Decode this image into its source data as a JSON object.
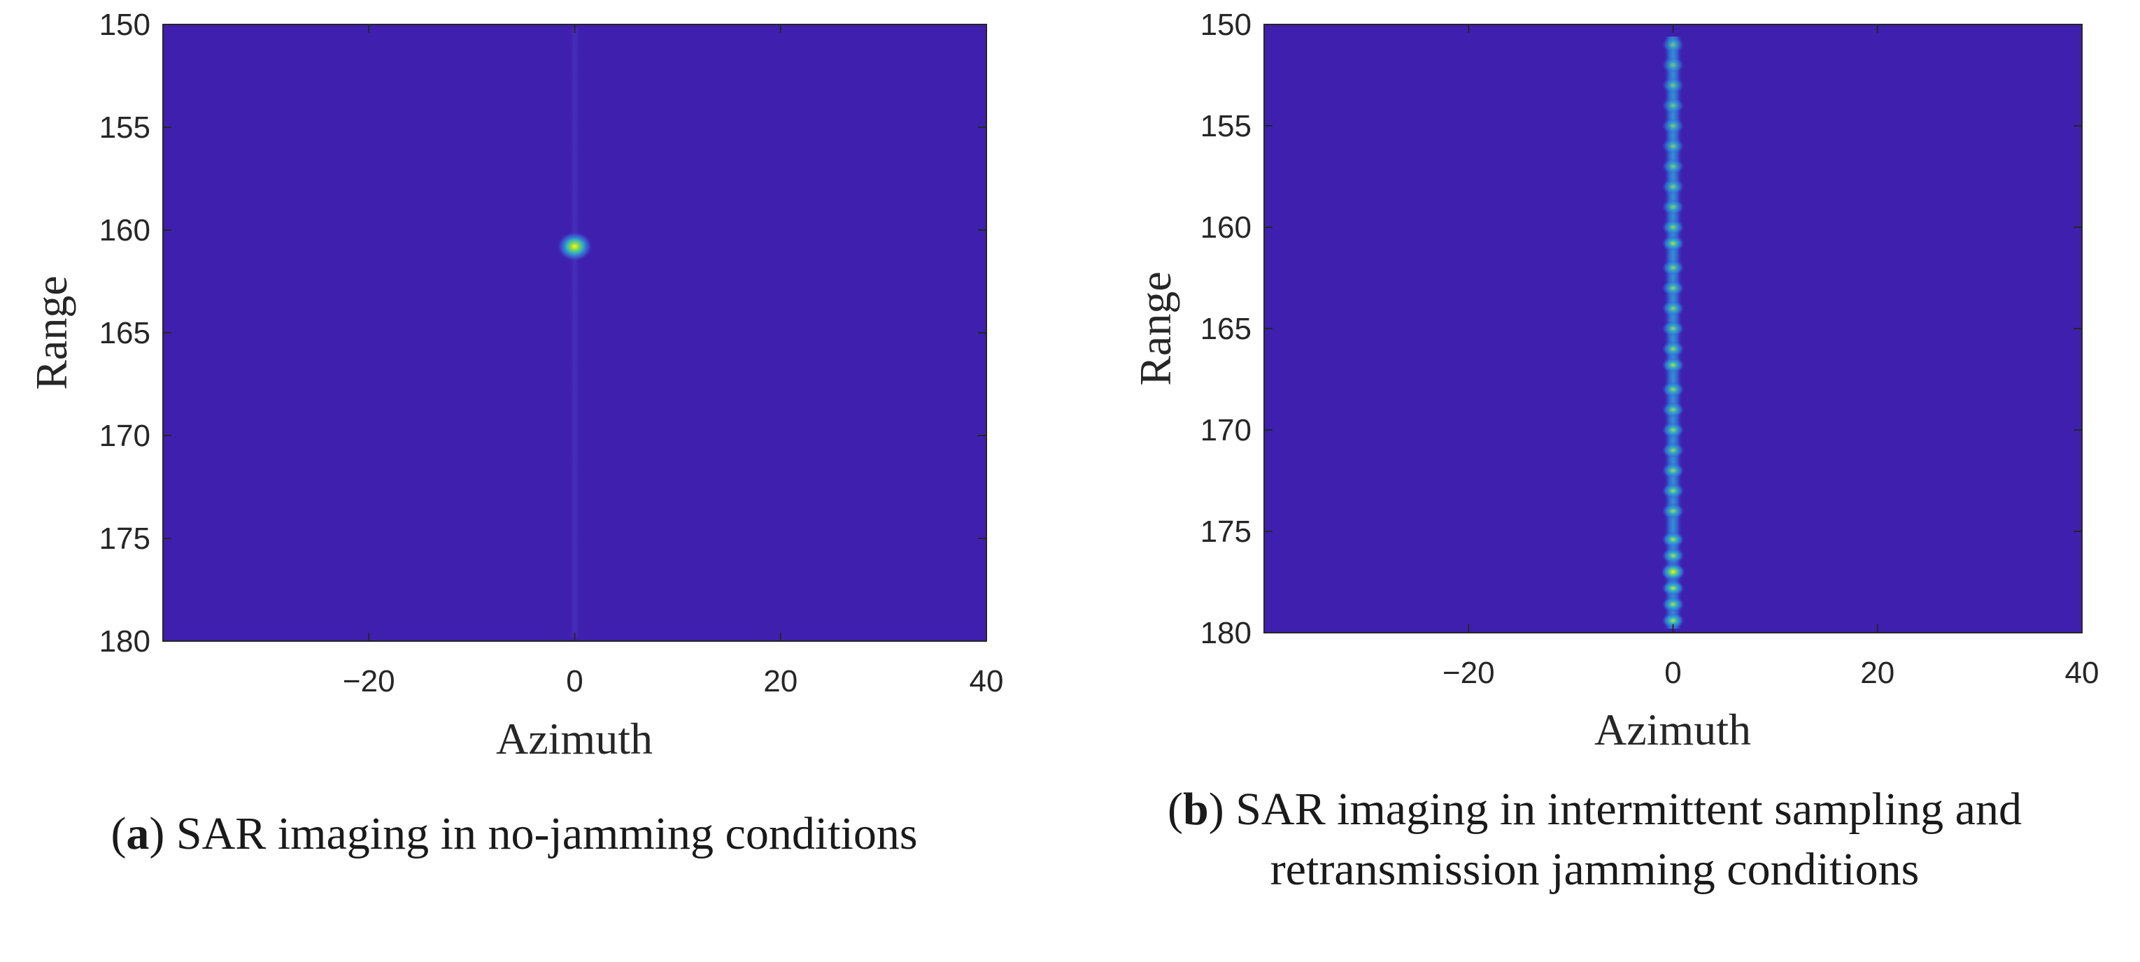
{
  "chart_data": [
    {
      "id": "a",
      "type": "heatmap",
      "title": "",
      "xlabel": "Azimuth",
      "ylabel": "Range",
      "xlim": [
        -40,
        40
      ],
      "ylim": [
        150,
        180
      ],
      "y_direction": "reversed",
      "xticks": [
        -20,
        0,
        20,
        40
      ],
      "xtick_labels": [
        "−20",
        "0",
        "20",
        "40"
      ],
      "yticks": [
        150,
        155,
        160,
        165,
        170,
        175,
        180
      ],
      "ytick_labels": [
        "150",
        "155",
        "160",
        "165",
        "170",
        "175",
        "180"
      ],
      "grid": false,
      "background_color": "#3f1fad",
      "points": [
        {
          "azimuth": 0,
          "range": 160.8,
          "intensity": 1.0
        }
      ],
      "caption": {
        "label": "a",
        "text": "SAR imaging in no-jamming conditions"
      }
    },
    {
      "id": "b",
      "type": "heatmap",
      "title": "",
      "xlabel": "Azimuth",
      "ylabel": "Range",
      "xlim": [
        -40,
        40
      ],
      "ylim": [
        150,
        180
      ],
      "y_direction": "reversed",
      "xticks": [
        -20,
        0,
        20,
        40
      ],
      "xtick_labels": [
        "−20",
        "0",
        "20",
        "40"
      ],
      "yticks": [
        150,
        155,
        160,
        165,
        170,
        175,
        180
      ],
      "ytick_labels": [
        "150",
        "155",
        "160",
        "165",
        "170",
        "175",
        "180"
      ],
      "grid": false,
      "background_color": "#3f1fad",
      "points": [
        {
          "azimuth": 0,
          "range": 151.0,
          "intensity": 0.25
        },
        {
          "azimuth": 0,
          "range": 152.0,
          "intensity": 0.25
        },
        {
          "azimuth": 0,
          "range": 153.0,
          "intensity": 0.3
        },
        {
          "azimuth": 0,
          "range": 154.0,
          "intensity": 0.3
        },
        {
          "azimuth": 0,
          "range": 155.0,
          "intensity": 0.3
        },
        {
          "azimuth": 0,
          "range": 156.0,
          "intensity": 0.35
        },
        {
          "azimuth": 0,
          "range": 157.0,
          "intensity": 0.35
        },
        {
          "azimuth": 0,
          "range": 158.0,
          "intensity": 0.4
        },
        {
          "azimuth": 0,
          "range": 159.0,
          "intensity": 0.4
        },
        {
          "azimuth": 0,
          "range": 160.0,
          "intensity": 0.5
        },
        {
          "azimuth": 0,
          "range": 160.8,
          "intensity": 0.7
        },
        {
          "azimuth": 0,
          "range": 162.0,
          "intensity": 0.5
        },
        {
          "azimuth": 0,
          "range": 163.0,
          "intensity": 0.5
        },
        {
          "azimuth": 0,
          "range": 164.0,
          "intensity": 0.5
        },
        {
          "azimuth": 0,
          "range": 165.0,
          "intensity": 0.5
        },
        {
          "azimuth": 0,
          "range": 166.0,
          "intensity": 0.55
        },
        {
          "azimuth": 0,
          "range": 166.8,
          "intensity": 0.7
        },
        {
          "azimuth": 0,
          "range": 168.0,
          "intensity": 0.55
        },
        {
          "azimuth": 0,
          "range": 169.0,
          "intensity": 0.55
        },
        {
          "azimuth": 0,
          "range": 170.0,
          "intensity": 0.6
        },
        {
          "azimuth": 0,
          "range": 171.0,
          "intensity": 0.55
        },
        {
          "azimuth": 0,
          "range": 172.0,
          "intensity": 0.6
        },
        {
          "azimuth": 0,
          "range": 173.0,
          "intensity": 0.6
        },
        {
          "azimuth": 0,
          "range": 174.0,
          "intensity": 0.6
        },
        {
          "azimuth": 0,
          "range": 175.4,
          "intensity": 0.75
        },
        {
          "azimuth": 0,
          "range": 176.2,
          "intensity": 0.7
        },
        {
          "azimuth": 0,
          "range": 177.0,
          "intensity": 1.0
        },
        {
          "azimuth": 0,
          "range": 177.8,
          "intensity": 0.85
        },
        {
          "azimuth": 0,
          "range": 178.6,
          "intensity": 0.7
        },
        {
          "azimuth": 0,
          "range": 179.4,
          "intensity": 0.8
        }
      ],
      "caption": {
        "label": "b",
        "text": "SAR imaging in intermittent sampling and",
        "text_line2": "retransmission jamming conditions"
      }
    }
  ]
}
